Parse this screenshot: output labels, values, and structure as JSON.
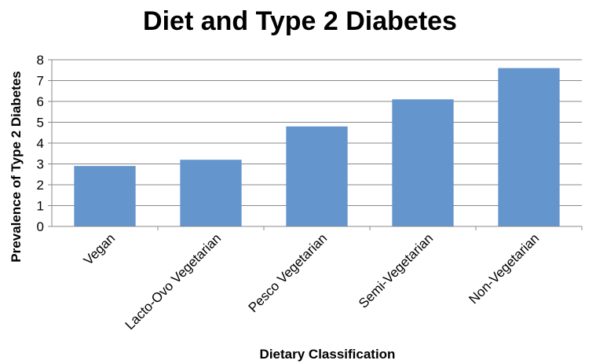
{
  "chart_data": {
    "type": "bar",
    "title": "Diet and Type 2 Diabetes",
    "xlabel": "Dietary Classification",
    "ylabel": "Prevalence of Type 2 Diabetes",
    "categories": [
      "Vegan",
      "Lacto-Ovo Vegetarian",
      "Pesco Vegetarian",
      "Semi-Vegetarian",
      "Non-Vegetarian"
    ],
    "values": [
      2.9,
      3.2,
      4.8,
      6.1,
      7.6
    ],
    "ylim": [
      0,
      8
    ],
    "yticks": [
      "0",
      "1",
      "2",
      "3",
      "4",
      "5",
      "6",
      "7",
      "8"
    ],
    "grid": true,
    "legend": "none",
    "colors": {
      "bar": "#6495cc",
      "grid": "#888888",
      "axis": "#888888"
    }
  }
}
